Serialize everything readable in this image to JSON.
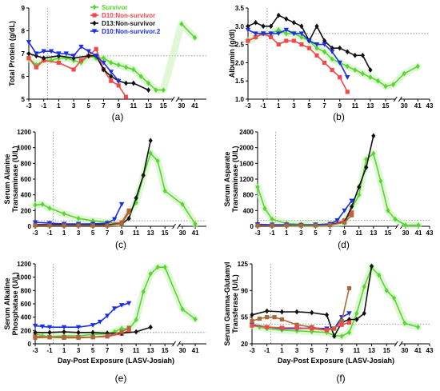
{
  "legend": [
    {
      "name": "Survivor",
      "color": "#57d62e",
      "marker": "diamond"
    },
    {
      "name": "D10:Non-survivor",
      "color": "#f4474a",
      "marker": "square"
    },
    {
      "name": "D13:Non-survivor",
      "color": "#111111",
      "marker": "diamond"
    },
    {
      "name": "D10:Non-survivor.2",
      "color": "#1a2ee6",
      "marker": "triangle"
    }
  ],
  "chart_data": [
    {
      "type": "line",
      "panel_label": "(a)",
      "ylabel": "Total Protein (g/dL)",
      "xlabel": "",
      "ylim": [
        5,
        9
      ],
      "yticks": [
        "5",
        "6",
        "7",
        "8",
        "9"
      ],
      "xticks": [
        "-3",
        "-1",
        "1",
        "3",
        "5",
        "7",
        "9",
        "11",
        "13",
        "15",
        "30",
        "41"
      ],
      "reference_line": 6.9,
      "vertical_line_x": -0.5,
      "series": [
        {
          "color": "#57d62e",
          "x": [
            -3,
            -2,
            -1,
            0,
            1,
            2,
            3,
            4,
            5,
            6,
            7,
            8,
            9,
            10,
            11,
            12,
            13,
            14,
            15,
            30,
            41
          ],
          "y": [
            6.8,
            6.5,
            6.7,
            6.7,
            6.8,
            6.8,
            6.7,
            6.6,
            6.9,
            6.8,
            6.8,
            6.6,
            6.5,
            6.4,
            6.3,
            6.0,
            5.7,
            5.4,
            5.4,
            8.3,
            7.7
          ],
          "break_after_index": 18
        },
        {
          "color": "#f4474a",
          "x": [
            -3,
            -2,
            -1,
            1,
            3,
            4,
            5,
            6,
            7,
            8,
            9,
            10
          ],
          "y": [
            6.8,
            6.4,
            6.7,
            6.6,
            6.3,
            6.7,
            6.9,
            7.2,
            6.3,
            5.8,
            5.6,
            5.1
          ]
        },
        {
          "color": "#111111",
          "x": [
            -3,
            -2,
            -1,
            1,
            3,
            5,
            6,
            7,
            8,
            9,
            10,
            11,
            13
          ],
          "y": [
            7.0,
            6.9,
            6.8,
            6.9,
            6.8,
            6.9,
            6.9,
            6.3,
            6.0,
            5.8,
            5.7,
            5.7,
            5.4
          ]
        },
        {
          "color": "#1a2ee6",
          "x": [
            -3,
            -2,
            -1,
            0,
            1,
            2,
            3,
            4,
            5,
            6,
            7,
            8,
            9
          ],
          "y": [
            7.5,
            7.0,
            7.1,
            7.1,
            7.0,
            7.0,
            6.9,
            7.3,
            7.1,
            6.9,
            6.6,
            6.2,
            5.8
          ]
        }
      ]
    },
    {
      "type": "line",
      "panel_label": "(b)",
      "ylabel": "Albumin (g/dl)",
      "xlabel": "",
      "ylim": [
        1.0,
        3.5
      ],
      "yticks": [
        "1.0",
        "1.5",
        "2.0",
        "2.5",
        "3.0",
        "3.5"
      ],
      "xticks": [
        "-3",
        "-1",
        "1",
        "3",
        "5",
        "7",
        "9",
        "11",
        "13",
        "15",
        "30",
        "41",
        "43"
      ],
      "reference_line": 2.8,
      "vertical_line_x": -0.5,
      "series": [
        {
          "color": "#57d62e",
          "x": [
            -3,
            -2,
            -1,
            0,
            1,
            2,
            3,
            4,
            5,
            6,
            7,
            8,
            9,
            10,
            11,
            12,
            13,
            14,
            15,
            16,
            30,
            41
          ],
          "y": [
            2.6,
            2.7,
            2.8,
            2.8,
            2.9,
            2.8,
            2.8,
            2.7,
            2.6,
            2.4,
            2.3,
            2.1,
            2.0,
            1.9,
            1.8,
            1.7,
            1.6,
            1.5,
            1.35,
            1.4,
            1.7,
            1.9
          ]
        },
        {
          "color": "#f4474a",
          "x": [
            -3,
            -2,
            -1,
            0,
            1,
            2,
            3,
            4,
            5,
            6,
            7,
            8,
            9,
            10
          ],
          "y": [
            2.6,
            2.7,
            2.8,
            2.7,
            2.5,
            2.6,
            2.6,
            2.5,
            2.4,
            2.2,
            2.0,
            1.8,
            1.6,
            1.2
          ]
        },
        {
          "color": "#111111",
          "x": [
            -3,
            -2,
            -1,
            0,
            1,
            2,
            3,
            4,
            5,
            6,
            7,
            8,
            9,
            10,
            11,
            12,
            13
          ],
          "y": [
            3.0,
            3.1,
            3.0,
            3.0,
            3.3,
            3.2,
            3.1,
            3.0,
            2.6,
            3.0,
            2.6,
            2.4,
            2.4,
            2.3,
            2.2,
            2.2,
            1.8
          ]
        },
        {
          "color": "#1a2ee6",
          "x": [
            -3,
            -2,
            -1,
            0,
            1,
            2,
            3,
            4,
            5,
            6,
            7,
            8,
            9,
            10
          ],
          "y": [
            2.9,
            2.8,
            2.8,
            2.8,
            2.8,
            2.9,
            2.8,
            2.8,
            2.6,
            2.5,
            2.5,
            2.3,
            2.0,
            1.6
          ]
        }
      ]
    },
    {
      "type": "line",
      "panel_label": "(c)",
      "ylabel": "Serum Alanine Transaminase (U/L)",
      "xlabel": "",
      "ylim": [
        0,
        1200
      ],
      "yticks": [
        "0",
        "200",
        "400",
        "600",
        "800",
        "1000",
        "1200"
      ],
      "xticks": [
        "-3",
        "-1",
        "1",
        "3",
        "5",
        "7",
        "9",
        "11",
        "13",
        "15",
        "30",
        "41"
      ],
      "reference_line": 70,
      "vertical_line_x": -0.5,
      "series": [
        {
          "color": "#57d62e",
          "x": [
            -3,
            -2,
            -1,
            1,
            3,
            5,
            7,
            9,
            11,
            12,
            13,
            14,
            15,
            30,
            41
          ],
          "y": [
            270,
            280,
            230,
            160,
            100,
            70,
            50,
            40,
            300,
            640,
            930,
            830,
            450,
            280,
            30
          ]
        },
        {
          "color": "#f4474a",
          "x": [
            -3,
            -1,
            1,
            3,
            5,
            7,
            9,
            10
          ],
          "y": [
            20,
            20,
            20,
            20,
            20,
            20,
            50,
            200
          ]
        },
        {
          "color": "#111111",
          "x": [
            -3,
            -1,
            1,
            3,
            5,
            7,
            9,
            10,
            11,
            12,
            13
          ],
          "y": [
            20,
            20,
            20,
            20,
            20,
            20,
            30,
            100,
            360,
            650,
            1090
          ]
        },
        {
          "color": "#1a2ee6",
          "x": [
            -3,
            -1,
            1,
            3,
            5,
            7,
            8,
            9
          ],
          "y": [
            50,
            40,
            30,
            30,
            30,
            40,
            90,
            280
          ]
        },
        {
          "color": "#a86a3a",
          "x": [
            -3,
            -1,
            1,
            3,
            5,
            7,
            9,
            10
          ],
          "y": [
            10,
            10,
            10,
            10,
            10,
            10,
            30,
            180
          ]
        }
      ]
    },
    {
      "type": "line",
      "panel_label": "(d)",
      "ylabel": "Serum Asparate Transaminase (U/L)",
      "xlabel": "",
      "ylim": [
        0,
        2400
      ],
      "yticks": [
        "0",
        "400",
        "800",
        "1200",
        "1600",
        "2000",
        "2400"
      ],
      "xticks": [
        "-3",
        "-1",
        "1",
        "3",
        "5",
        "7",
        "9",
        "11",
        "13",
        "15",
        "30",
        "41",
        "43"
      ],
      "reference_line": 150,
      "vertical_line_x": -0.5,
      "series": [
        {
          "color": "#57d62e",
          "x": [
            -3,
            -2,
            -1,
            1,
            3,
            5,
            7,
            9,
            11,
            12,
            13,
            14,
            15,
            16,
            30,
            41
          ],
          "y": [
            1000,
            450,
            180,
            70,
            50,
            40,
            60,
            100,
            800,
            1700,
            1850,
            1150,
            400,
            180,
            30,
            30
          ]
        },
        {
          "color": "#f4474a",
          "x": [
            -3,
            -1,
            1,
            3,
            5,
            7,
            9,
            10
          ],
          "y": [
            30,
            30,
            30,
            30,
            30,
            40,
            150,
            350
          ]
        },
        {
          "color": "#111111",
          "x": [
            -3,
            -1,
            1,
            3,
            5,
            7,
            9,
            10,
            11,
            12,
            13
          ],
          "y": [
            30,
            30,
            30,
            30,
            30,
            40,
            100,
            500,
            1000,
            1500,
            2300
          ]
        },
        {
          "color": "#1a2ee6",
          "x": [
            -3,
            -1,
            1,
            3,
            5,
            7,
            8,
            9,
            10
          ],
          "y": [
            50,
            40,
            40,
            30,
            40,
            60,
            150,
            400,
            650
          ]
        },
        {
          "color": "#a86a3a",
          "x": [
            -3,
            -1,
            1,
            3,
            5,
            7,
            9,
            10
          ],
          "y": [
            20,
            20,
            20,
            20,
            20,
            30,
            100,
            280
          ]
        }
      ]
    },
    {
      "type": "line",
      "panel_label": "(e)",
      "ylabel": "Serum Alkaline Phosphatase (U/L)",
      "xlabel": "Day-Post Exposure (LASV-Josiah)",
      "ylim": [
        0,
        1200
      ],
      "yticks": [
        "0",
        "200",
        "400",
        "600",
        "800",
        "1000",
        "1200"
      ],
      "xticks": [
        "-3",
        "-1",
        "1",
        "3",
        "5",
        "7",
        "9",
        "11",
        "13",
        "15",
        "30",
        "41"
      ],
      "reference_line": 170,
      "vertical_line_x": -0.5,
      "series": [
        {
          "color": "#57d62e",
          "x": [
            -3,
            -2,
            -1,
            1,
            3,
            5,
            7,
            8,
            9,
            10,
            11,
            12,
            13,
            14,
            15,
            30,
            41
          ],
          "y": [
            150,
            120,
            110,
            120,
            120,
            140,
            150,
            180,
            230,
            220,
            360,
            780,
            1050,
            1150,
            1150,
            520,
            370
          ]
        },
        {
          "color": "#f4474a",
          "x": [
            -3,
            -1,
            1,
            3,
            5,
            7,
            9,
            10
          ],
          "y": [
            110,
            100,
            100,
            100,
            100,
            110,
            150,
            200
          ]
        },
        {
          "color": "#111111",
          "x": [
            -3,
            -1,
            1,
            3,
            5,
            7,
            9,
            11,
            13
          ],
          "y": [
            170,
            170,
            180,
            170,
            170,
            160,
            160,
            180,
            250
          ]
        },
        {
          "color": "#1a2ee6",
          "x": [
            -3,
            -2,
            -1,
            1,
            3,
            5,
            6,
            7,
            8,
            9,
            10
          ],
          "y": [
            270,
            260,
            250,
            250,
            250,
            280,
            330,
            420,
            530,
            580,
            610
          ]
        },
        {
          "color": "#a86a3a",
          "x": [
            -3,
            -1,
            1,
            3,
            5,
            7,
            9,
            10
          ],
          "y": [
            90,
            100,
            90,
            90,
            100,
            120,
            180,
            240
          ]
        }
      ]
    },
    {
      "type": "line",
      "panel_label": "(f)",
      "ylabel": "Serum Gamma-Glutamyl Transferase (U/L)",
      "xlabel": "Day-Post Exposure (LASV-Josiah)",
      "ylim": [
        20,
        125
      ],
      "yticks": [
        "20",
        "55",
        "90",
        "125"
      ],
      "xticks": [
        "-3",
        "-1",
        "1",
        "3",
        "5",
        "7",
        "9",
        "11",
        "13",
        "15",
        "30",
        "41",
        "43"
      ],
      "reference_line": 46,
      "vertical_line_x": -0.5,
      "series": [
        {
          "color": "#57d62e",
          "x": [
            -3,
            -2,
            -1,
            1,
            3,
            5,
            7,
            8,
            9,
            10,
            11,
            12,
            13,
            14,
            15,
            16,
            30,
            41
          ],
          "y": [
            44,
            42,
            40,
            38,
            37,
            36,
            35,
            31,
            30,
            35,
            60,
            95,
            120,
            110,
            90,
            80,
            47,
            42
          ]
        },
        {
          "color": "#111111",
          "x": [
            -3,
            -1,
            1,
            3,
            5,
            7,
            8,
            9,
            10,
            11,
            12,
            13
          ],
          "y": [
            58,
            63,
            62,
            62,
            61,
            58,
            30,
            48,
            52,
            52,
            60,
            122
          ]
        },
        {
          "color": "#1a2ee6",
          "x": [
            -3,
            -1,
            1,
            3,
            5,
            7,
            8,
            9,
            10
          ],
          "y": [
            45,
            42,
            40,
            40,
            41,
            40,
            40,
            55,
            60
          ]
        },
        {
          "color": "#a86a3a",
          "x": [
            -3,
            -2,
            -1,
            0,
            1,
            3,
            5,
            7,
            8,
            9,
            10
          ],
          "y": [
            50,
            53,
            55,
            55,
            52,
            45,
            42,
            38,
            40,
            50,
            93
          ]
        },
        {
          "color": "#f4474a",
          "x": [
            -3,
            -1,
            1,
            3,
            5,
            7,
            9,
            10
          ],
          "y": [
            44,
            42,
            41,
            41,
            40,
            38,
            45,
            48
          ]
        }
      ]
    }
  ]
}
